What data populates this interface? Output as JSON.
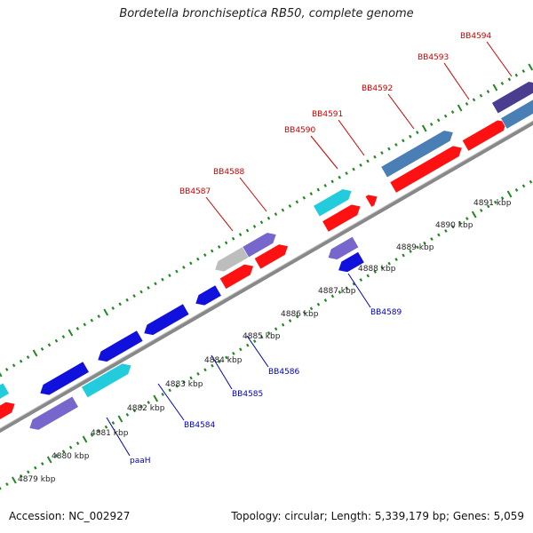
{
  "title": "Bordetella bronchiseptica RB50, complete genome",
  "accession": "Accession: NC_002927",
  "info": "Topology: circular; Length: 5,339,179 bp; Genes: 5,059",
  "colors": {
    "forward_gene": "#ff1111",
    "reverse_gene": "#1111dd",
    "cyan_gene": "#22ccdd",
    "purple_gene": "#7766cc",
    "steel_gene": "#4a7fb5",
    "dark_purple_gene": "#4a3d8f",
    "grey_gene": "#bdbdbd",
    "backbone": "#888888",
    "tick": "#228822",
    "forward_label": "#cc0000",
    "reverse_label": "#0000bb",
    "leader": "#cc0000",
    "leader_reverse": "#0000bb"
  },
  "scale_labels": [
    "4879 kbp",
    "4880 kbp",
    "4881 kbp",
    "4882 kbp",
    "4883 kbp",
    "4884 kbp",
    "4885 kbp",
    "4886 kbp",
    "4887 kbp",
    "4888 kbp",
    "4889 kbp",
    "4890 kbp",
    "4891 kbp"
  ],
  "forward_gene_labels": [
    "BB4587",
    "BB4588",
    "BB4590",
    "BB4591",
    "BB4592",
    "BB4593",
    "BB4594"
  ],
  "reverse_gene_labels": [
    "paaH",
    "BB4584",
    "BB4585",
    "BB4586",
    "BB4589"
  ]
}
